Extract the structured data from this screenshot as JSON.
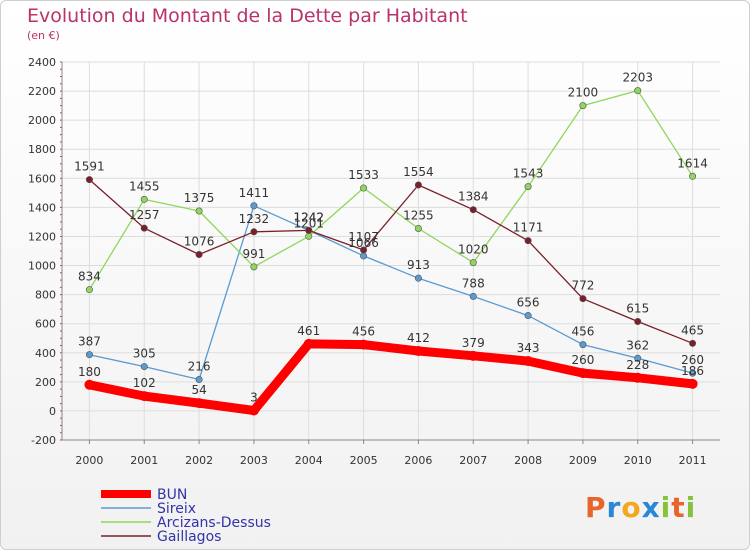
{
  "title": "Evolution du Montant de la Dette par Habitant",
  "subtitle": "(en €)",
  "logo": {
    "text": "Proxiti",
    "letters": [
      "P",
      "r",
      "o",
      "x",
      "i",
      "t",
      "i"
    ],
    "colors": [
      "#e8642a",
      "#2a87d8",
      "#f3a81b",
      "#2a87d8",
      "#88c23a",
      "#e8642a",
      "#88c23a"
    ]
  },
  "chart_data": {
    "type": "line",
    "x": [
      "2000",
      "2001",
      "2002",
      "2003",
      "2004",
      "2005",
      "2006",
      "2007",
      "2008",
      "2009",
      "2010",
      "2011"
    ],
    "ylim": [
      -200,
      2400
    ],
    "yticks": [
      -200,
      0,
      200,
      400,
      600,
      800,
      1000,
      1200,
      1400,
      1600,
      1800,
      2000,
      2200,
      2400
    ],
    "grid": true,
    "legend_position": "bottom-left",
    "series": [
      {
        "name": "Sireix",
        "color": "#5b9bd0",
        "values": [
          387,
          305,
          216,
          1411,
          1242,
          1066,
          913,
          788,
          656,
          456,
          362,
          260
        ]
      },
      {
        "name": "Arcizans-Dessus",
        "color": "#8fd65c",
        "values": [
          834,
          1455,
          1375,
          991,
          1201,
          1533,
          1255,
          1020,
          1543,
          2100,
          2203,
          1614
        ]
      },
      {
        "name": "Gaillagos",
        "color": "#7a1f2b",
        "values": [
          1591,
          1257,
          1076,
          1232,
          1242,
          1107,
          1554,
          1384,
          1171,
          772,
          615,
          465
        ]
      },
      {
        "name": "BUN",
        "color": "#ff0000",
        "values": [
          180,
          102,
          54,
          3,
          461,
          456,
          412,
          379,
          343,
          260,
          228,
          186
        ]
      }
    ],
    "legend_order": [
      "BUN",
      "Sireix",
      "Arcizans-Dessus",
      "Gaillagos"
    ]
  }
}
